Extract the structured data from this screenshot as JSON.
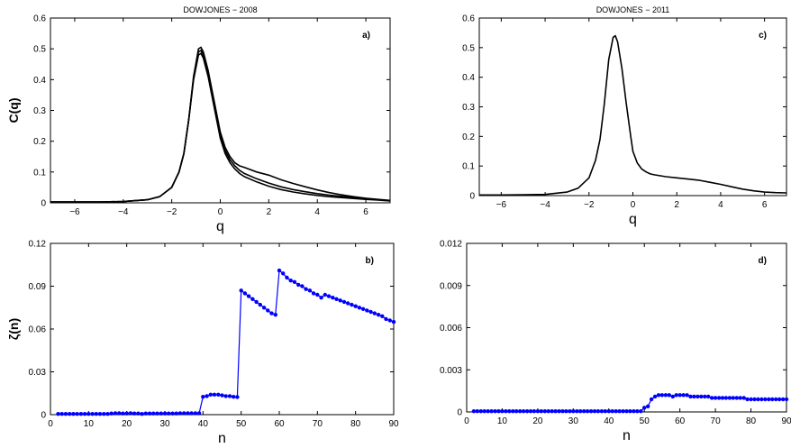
{
  "chart_data": [
    {
      "id": "a",
      "type": "line",
      "title": "DOWJONES − 2008",
      "panel_label": "a)",
      "xlabel": "q",
      "ylabel": "C(q)",
      "xlim": [
        -7,
        7
      ],
      "ylim": [
        0,
        0.6
      ],
      "xticks": [
        -6,
        -4,
        -2,
        0,
        2,
        4,
        6
      ],
      "yticks": [
        0,
        0.1,
        0.2,
        0.3,
        0.4,
        0.5,
        0.6
      ],
      "line_color": "#000000",
      "marker": false,
      "series": [
        {
          "x": [
            -7,
            -6,
            -5,
            -4,
            -3,
            -2.5,
            -2,
            -1.7,
            -1.5,
            -1.3,
            -1.1,
            -0.9,
            -0.8,
            -0.7,
            -0.5,
            -0.3,
            -0.1,
            0,
            0.2,
            0.4,
            0.6,
            0.8,
            1,
            1.5,
            2,
            2.5,
            3,
            3.5,
            4,
            4.5,
            5,
            5.5,
            6,
            6.5,
            7
          ],
          "y": [
            0.003,
            0.003,
            0.003,
            0.004,
            0.01,
            0.02,
            0.05,
            0.1,
            0.16,
            0.27,
            0.41,
            0.5,
            0.505,
            0.49,
            0.43,
            0.35,
            0.27,
            0.23,
            0.18,
            0.15,
            0.13,
            0.12,
            0.115,
            0.1,
            0.09,
            0.075,
            0.063,
            0.052,
            0.042,
            0.033,
            0.026,
            0.02,
            0.015,
            0.011,
            0.008
          ]
        },
        {
          "x": [
            -7,
            -6,
            -5,
            -4,
            -3,
            -2.5,
            -2,
            -1.7,
            -1.5,
            -1.3,
            -1.1,
            -0.9,
            -0.8,
            -0.7,
            -0.5,
            -0.3,
            -0.1,
            0,
            0.2,
            0.4,
            0.6,
            0.8,
            1,
            1.5,
            2,
            2.5,
            3,
            3.5,
            4,
            4.5,
            5,
            5.5,
            6,
            6.5,
            7
          ],
          "y": [
            0.003,
            0.003,
            0.003,
            0.004,
            0.01,
            0.02,
            0.05,
            0.1,
            0.16,
            0.27,
            0.41,
            0.49,
            0.495,
            0.48,
            0.42,
            0.34,
            0.26,
            0.22,
            0.17,
            0.14,
            0.12,
            0.105,
            0.095,
            0.078,
            0.064,
            0.052,
            0.043,
            0.036,
            0.03,
            0.025,
            0.021,
            0.017,
            0.013,
            0.01,
            0.007
          ]
        },
        {
          "x": [
            -7,
            -6,
            -5,
            -4,
            -3,
            -2.5,
            -2,
            -1.7,
            -1.5,
            -1.3,
            -1.1,
            -0.9,
            -0.8,
            -0.7,
            -0.5,
            -0.3,
            -0.1,
            0,
            0.2,
            0.4,
            0.6,
            0.8,
            1,
            1.5,
            2,
            2.5,
            3,
            3.5,
            4,
            4.5,
            5,
            5.5,
            6,
            6.5,
            7
          ],
          "y": [
            0.003,
            0.003,
            0.003,
            0.004,
            0.01,
            0.02,
            0.05,
            0.1,
            0.16,
            0.27,
            0.4,
            0.48,
            0.485,
            0.47,
            0.41,
            0.33,
            0.25,
            0.21,
            0.16,
            0.13,
            0.11,
            0.095,
            0.085,
            0.068,
            0.054,
            0.043,
            0.035,
            0.029,
            0.024,
            0.02,
            0.017,
            0.014,
            0.011,
            0.009,
            0.006
          ]
        }
      ]
    },
    {
      "id": "c",
      "type": "line",
      "title": "DOWJONES − 2011",
      "panel_label": "c)",
      "xlabel": "q",
      "ylabel": "",
      "xlim": [
        -7,
        7
      ],
      "ylim": [
        0,
        0.6
      ],
      "xticks": [
        -6,
        -4,
        -2,
        0,
        2,
        4,
        6
      ],
      "yticks": [
        0,
        0.1,
        0.2,
        0.3,
        0.4,
        0.5,
        0.6
      ],
      "line_color": "#000000",
      "marker": false,
      "series": [
        {
          "x": [
            -7,
            -6,
            -5,
            -4,
            -3,
            -2.5,
            -2,
            -1.7,
            -1.5,
            -1.3,
            -1.1,
            -0.9,
            -0.8,
            -0.7,
            -0.5,
            -0.3,
            -0.1,
            0,
            0.2,
            0.4,
            0.6,
            0.8,
            1,
            1.5,
            2,
            2.5,
            3,
            3.5,
            4,
            4.5,
            5,
            5.5,
            6,
            6.5,
            7
          ],
          "y": [
            0.002,
            0.002,
            0.003,
            0.004,
            0.012,
            0.025,
            0.06,
            0.12,
            0.19,
            0.31,
            0.46,
            0.535,
            0.54,
            0.52,
            0.43,
            0.31,
            0.2,
            0.15,
            0.11,
            0.09,
            0.08,
            0.073,
            0.07,
            0.064,
            0.06,
            0.056,
            0.052,
            0.045,
            0.038,
            0.03,
            0.022,
            0.016,
            0.012,
            0.01,
            0.009
          ]
        }
      ]
    },
    {
      "id": "b",
      "type": "line",
      "title": "",
      "panel_label": "b)",
      "xlabel": "n",
      "ylabel": "ζ(n)",
      "xlim": [
        0,
        90
      ],
      "ylim": [
        0,
        0.12
      ],
      "xticks": [
        0,
        10,
        20,
        30,
        40,
        50,
        60,
        70,
        80,
        90
      ],
      "yticks": [
        0,
        0.03,
        0.06,
        0.09,
        0.12
      ],
      "ytick_labels": [
        "0",
        "0.03",
        "0.06",
        "0.09",
        "0.12"
      ],
      "line_color": "#0000ff",
      "marker": true,
      "series": [
        {
          "x": [
            2,
            3,
            4,
            5,
            6,
            7,
            8,
            9,
            10,
            11,
            12,
            13,
            14,
            15,
            16,
            17,
            18,
            19,
            20,
            21,
            22,
            23,
            24,
            25,
            26,
            27,
            28,
            29,
            30,
            31,
            32,
            33,
            34,
            35,
            36,
            37,
            38,
            39,
            40,
            41,
            42,
            43,
            44,
            45,
            46,
            47,
            48,
            49,
            50,
            51,
            52,
            53,
            54,
            55,
            56,
            57,
            58,
            59,
            60,
            61,
            62,
            63,
            64,
            65,
            66,
            67,
            68,
            69,
            70,
            71,
            72,
            73,
            74,
            75,
            76,
            77,
            78,
            79,
            80,
            81,
            82,
            83,
            84,
            85,
            86,
            87,
            88,
            89,
            90
          ],
          "y": [
            0.0005,
            0.0005,
            0.0005,
            0.0005,
            0.0005,
            0.0005,
            0.0005,
            0.0005,
            0.0005,
            0.0005,
            0.0005,
            0.0005,
            0.0005,
            0.0005,
            0.0008,
            0.001,
            0.001,
            0.0008,
            0.0008,
            0.001,
            0.0008,
            0.0008,
            0.0005,
            0.0008,
            0.0008,
            0.0008,
            0.0008,
            0.0008,
            0.0008,
            0.0008,
            0.0008,
            0.0008,
            0.001,
            0.001,
            0.001,
            0.001,
            0.001,
            0.001,
            0.0125,
            0.013,
            0.014,
            0.014,
            0.014,
            0.0135,
            0.013,
            0.013,
            0.0125,
            0.0123,
            0.087,
            0.085,
            0.083,
            0.081,
            0.079,
            0.077,
            0.075,
            0.073,
            0.071,
            0.07,
            0.101,
            0.099,
            0.096,
            0.094,
            0.093,
            0.091,
            0.09,
            0.088,
            0.087,
            0.085,
            0.084,
            0.082,
            0.084,
            0.083,
            0.082,
            0.081,
            0.08,
            0.079,
            0.078,
            0.077,
            0.076,
            0.075,
            0.074,
            0.073,
            0.072,
            0.071,
            0.07,
            0.069,
            0.067,
            0.066,
            0.065
          ]
        }
      ]
    },
    {
      "id": "d",
      "type": "line",
      "title": "",
      "panel_label": "d)",
      "xlabel": "n",
      "ylabel": "",
      "xlim": [
        0,
        90
      ],
      "ylim": [
        0,
        0.012
      ],
      "xticks": [
        0,
        10,
        20,
        30,
        40,
        50,
        60,
        70,
        80,
        90
      ],
      "yticks": [
        0,
        0.003,
        0.006,
        0.009,
        0.012
      ],
      "ytick_labels": [
        "0",
        "0.003",
        "0.006",
        "0.009",
        "0.012"
      ],
      "line_color": "#0000ff",
      "marker": true,
      "series": [
        {
          "x": [
            2,
            3,
            4,
            5,
            6,
            7,
            8,
            9,
            10,
            11,
            12,
            13,
            14,
            15,
            16,
            17,
            18,
            19,
            20,
            21,
            22,
            23,
            24,
            25,
            26,
            27,
            28,
            29,
            30,
            31,
            32,
            33,
            34,
            35,
            36,
            37,
            38,
            39,
            40,
            41,
            42,
            43,
            44,
            45,
            46,
            47,
            48,
            49,
            50,
            51,
            52,
            53,
            54,
            55,
            56,
            57,
            58,
            59,
            60,
            61,
            62,
            63,
            64,
            65,
            66,
            67,
            68,
            69,
            70,
            71,
            72,
            73,
            74,
            75,
            76,
            77,
            78,
            79,
            80,
            81,
            82,
            83,
            84,
            85,
            86,
            87,
            88,
            89,
            90
          ],
          "y": [
            5e-05,
            5e-05,
            5e-05,
            5e-05,
            5e-05,
            5e-05,
            5e-05,
            5e-05,
            5e-05,
            5e-05,
            5e-05,
            5e-05,
            5e-05,
            5e-05,
            5e-05,
            5e-05,
            5e-05,
            5e-05,
            5e-05,
            5e-05,
            5e-05,
            5e-05,
            5e-05,
            5e-05,
            5e-05,
            5e-05,
            5e-05,
            5e-05,
            5e-05,
            5e-05,
            5e-05,
            5e-05,
            5e-05,
            5e-05,
            5e-05,
            5e-05,
            5e-05,
            5e-05,
            5e-05,
            5e-05,
            5e-05,
            5e-05,
            5e-05,
            5e-05,
            5e-05,
            5e-05,
            5e-05,
            5e-05,
            0.0003,
            0.0004,
            0.0009,
            0.0011,
            0.0012,
            0.0012,
            0.0012,
            0.0012,
            0.0011,
            0.0012,
            0.0012,
            0.0012,
            0.0012,
            0.0011,
            0.0011,
            0.0011,
            0.0011,
            0.0011,
            0.0011,
            0.001,
            0.001,
            0.001,
            0.001,
            0.001,
            0.001,
            0.001,
            0.001,
            0.001,
            0.001,
            0.0009,
            0.0009,
            0.0009,
            0.0009,
            0.0009,
            0.0009,
            0.0009,
            0.0009,
            0.0009,
            0.0009,
            0.0009,
            0.0009
          ]
        }
      ]
    }
  ]
}
